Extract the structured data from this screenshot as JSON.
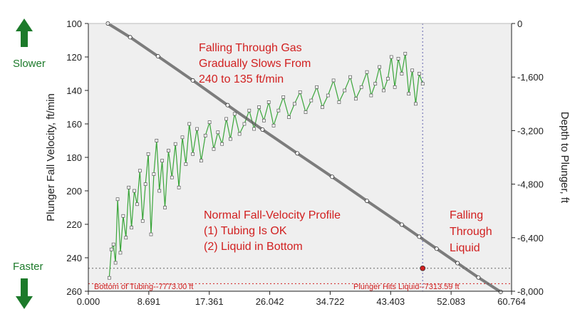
{
  "chart_data": {
    "type": "line",
    "title": "",
    "xlabel": "",
    "ylabel": "Plunger Fall Velocity, ft/min",
    "y2label": "Depth to Plunger, ft",
    "xlim": [
      0,
      60.764
    ],
    "ylim": [
      100,
      260
    ],
    "y2lim": [
      0,
      -8000
    ],
    "x_ticks": [
      "0.000",
      "8.691",
      "17.361",
      "26.042",
      "34.722",
      "43.403",
      "52.083",
      "60.764"
    ],
    "y_ticks": [
      "100",
      "120",
      "140",
      "160",
      "180",
      "200",
      "220",
      "240",
      "260"
    ],
    "y2_ticks": [
      "0",
      "-1,600",
      "-3,200",
      "-4,800",
      "-6,400",
      "-8,000"
    ],
    "grid": false,
    "colors": {
      "velocity_line": "#3aa53a",
      "velocity_marker": "#9a9a9a",
      "depth_line": "#555555",
      "annotation": "#d11f1f",
      "arrow": "#1c7a2a",
      "reference": "#7a7ab8"
    },
    "series": [
      {
        "name": "",
        "axis": "left",
        "x": [
          3.0,
          3.3,
          3.6,
          3.9,
          4.2,
          4.6,
          5.0,
          5.4,
          5.8,
          6.2,
          6.6,
          7.0,
          7.4,
          7.8,
          8.2,
          8.6,
          9.0,
          9.4,
          9.8,
          10.2,
          10.6,
          11.0,
          11.5,
          12.0,
          12.5,
          13.0,
          13.5,
          14.0,
          14.5,
          15.0,
          15.6,
          16.2,
          16.8,
          17.4,
          18.0,
          18.6,
          19.2,
          19.8,
          20.4,
          21.0,
          21.7,
          22.4,
          23.1,
          23.8,
          24.5,
          25.2,
          25.9,
          26.6,
          27.3,
          28.0,
          28.8,
          29.6,
          30.4,
          31.2,
          32.0,
          32.8,
          33.6,
          34.4,
          35.2,
          36.0,
          36.8,
          37.6,
          38.4,
          39.2,
          40.0,
          40.6,
          41.2,
          41.8,
          42.4,
          43.0,
          43.5,
          44.0,
          44.5,
          45.0,
          45.5,
          46.0,
          46.5,
          47.0,
          47.5,
          48.0
        ],
        "values": [
          252,
          235,
          232,
          243,
          205,
          237,
          215,
          228,
          198,
          222,
          200,
          208,
          188,
          218,
          196,
          178,
          226,
          190,
          170,
          200,
          182,
          210,
          176,
          192,
          172,
          198,
          168,
          184,
          160,
          178,
          163,
          182,
          167,
          159,
          175,
          165,
          172,
          157,
          169,
          154,
          166,
          160,
          152,
          163,
          150,
          158,
          147,
          161,
          152,
          144,
          156,
          148,
          141,
          153,
          146,
          138,
          150,
          143,
          134,
          147,
          140,
          132,
          145,
          138,
          129,
          143,
          136,
          126,
          140,
          133,
          120,
          138,
          121,
          130,
          118,
          142,
          128,
          148,
          130,
          136
        ]
      },
      {
        "name": "",
        "axis": "right",
        "x": [
          2.8,
          6,
          10,
          15,
          20,
          25,
          30,
          35,
          40,
          45,
          47.5,
          50,
          53,
          56,
          59.2
        ],
        "values": [
          0,
          -410,
          -980,
          -1700,
          -2440,
          -3170,
          -3880,
          -4580,
          -5300,
          -6010,
          -6370,
          -6730,
          -7160,
          -7590,
          -8020
        ]
      }
    ],
    "annotations": [
      {
        "text_lines": [
          "Falling Through Gas",
          "Gradually Slows From",
          "240 to 135 ft/min"
        ]
      },
      {
        "text_lines": [
          "Normal Fall-Velocity Profile",
          "(1) Tubing Is OK",
          "(2) Liquid in Bottom"
        ]
      },
      {
        "text_lines": [
          "Falling",
          "Through",
          "Liquid"
        ]
      },
      {
        "text": "Bottom of Tubing--7773.00 ft",
        "depth": -7773
      },
      {
        "text": "Plunger Hits Liquid--7313.59 ft",
        "depth": -7313.59,
        "x": 48.0
      }
    ],
    "side_labels": {
      "top": "Slower",
      "bottom": "Faster"
    }
  }
}
